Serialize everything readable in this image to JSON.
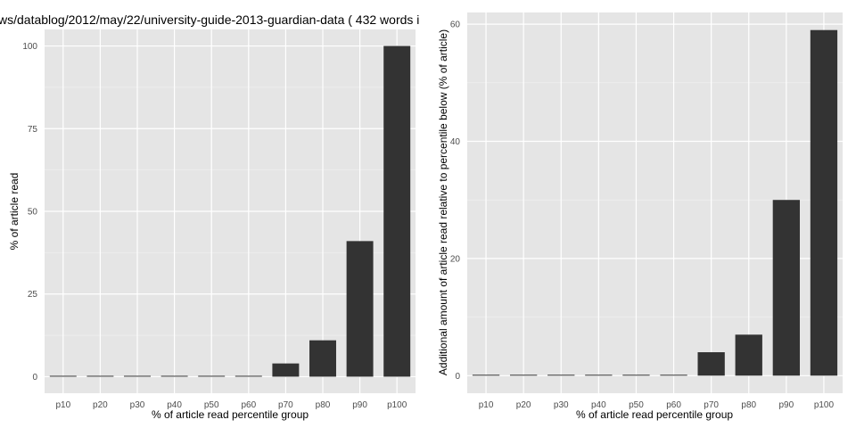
{
  "chart_data": [
    {
      "type": "bar",
      "title": "ws/datablog/2012/may/22/university-guide-2013-guardian-data ( 432 words i",
      "xlabel": "% of article read percentile group",
      "ylabel": "% of article read",
      "categories": [
        "p10",
        "p20",
        "p30",
        "p40",
        "p50",
        "p60",
        "p70",
        "p80",
        "p90",
        "p100"
      ],
      "values": [
        0,
        0,
        0,
        0,
        0,
        0,
        4,
        11,
        41,
        100
      ],
      "ylim": [
        -5,
        105
      ],
      "yticks": [
        "0",
        "25",
        "50",
        "75",
        "100"
      ],
      "grid": true
    },
    {
      "type": "bar",
      "title": "",
      "xlabel": "% of article read percentile group",
      "ylabel": "Additional amount of article read relative to percentile below (% of article)",
      "categories": [
        "p10",
        "p20",
        "p30",
        "p40",
        "p50",
        "p60",
        "p70",
        "p80",
        "p90",
        "p100"
      ],
      "values": [
        0,
        0,
        0,
        0,
        0,
        0,
        4,
        7,
        30,
        59
      ],
      "ylim": [
        -3,
        62
      ],
      "yticks": [
        "0",
        "20",
        "40",
        "60"
      ],
      "grid": true
    }
  ],
  "colors": {
    "panel_bg": "#e5e5e5",
    "grid_major": "#ffffff",
    "grid_minor": "#f2f2f2",
    "bar": "#333333"
  }
}
